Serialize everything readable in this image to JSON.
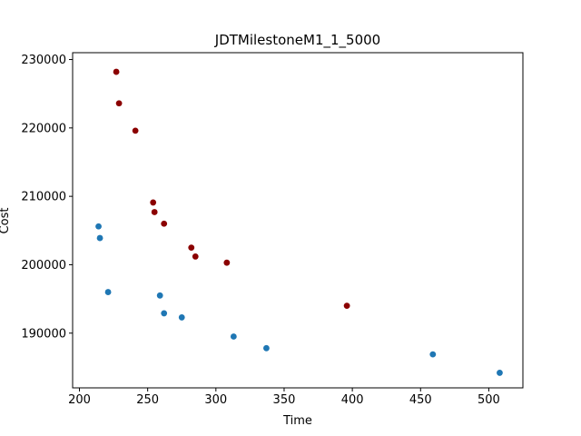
{
  "chart_data": {
    "type": "scatter",
    "title": "JDTMilestoneM1_1_5000",
    "xlabel": "Time",
    "ylabel": "Cost",
    "xlim": [
      195,
      525
    ],
    "ylim": [
      182000,
      231000
    ],
    "x_ticks": [
      200,
      250,
      300,
      350,
      400,
      450,
      500
    ],
    "y_ticks": [
      190000,
      200000,
      210000,
      220000,
      230000
    ],
    "grid": false,
    "series": [
      {
        "color": "#8b0000",
        "points": [
          {
            "x": 227,
            "y": 228200
          },
          {
            "x": 229,
            "y": 223600
          },
          {
            "x": 241,
            "y": 219600
          },
          {
            "x": 254,
            "y": 209100
          },
          {
            "x": 255,
            "y": 207700
          },
          {
            "x": 262,
            "y": 206000
          },
          {
            "x": 282,
            "y": 202500
          },
          {
            "x": 285,
            "y": 201200
          },
          {
            "x": 308,
            "y": 200300
          },
          {
            "x": 396,
            "y": 194000
          }
        ]
      },
      {
        "color": "#1f77b4",
        "points": [
          {
            "x": 214,
            "y": 205600
          },
          {
            "x": 215,
            "y": 203900
          },
          {
            "x": 221,
            "y": 196000
          },
          {
            "x": 259,
            "y": 195500
          },
          {
            "x": 262,
            "y": 192900
          },
          {
            "x": 275,
            "y": 192300
          },
          {
            "x": 313,
            "y": 189500
          },
          {
            "x": 337,
            "y": 187800
          },
          {
            "x": 459,
            "y": 186900
          },
          {
            "x": 508,
            "y": 184200
          }
        ]
      }
    ]
  }
}
